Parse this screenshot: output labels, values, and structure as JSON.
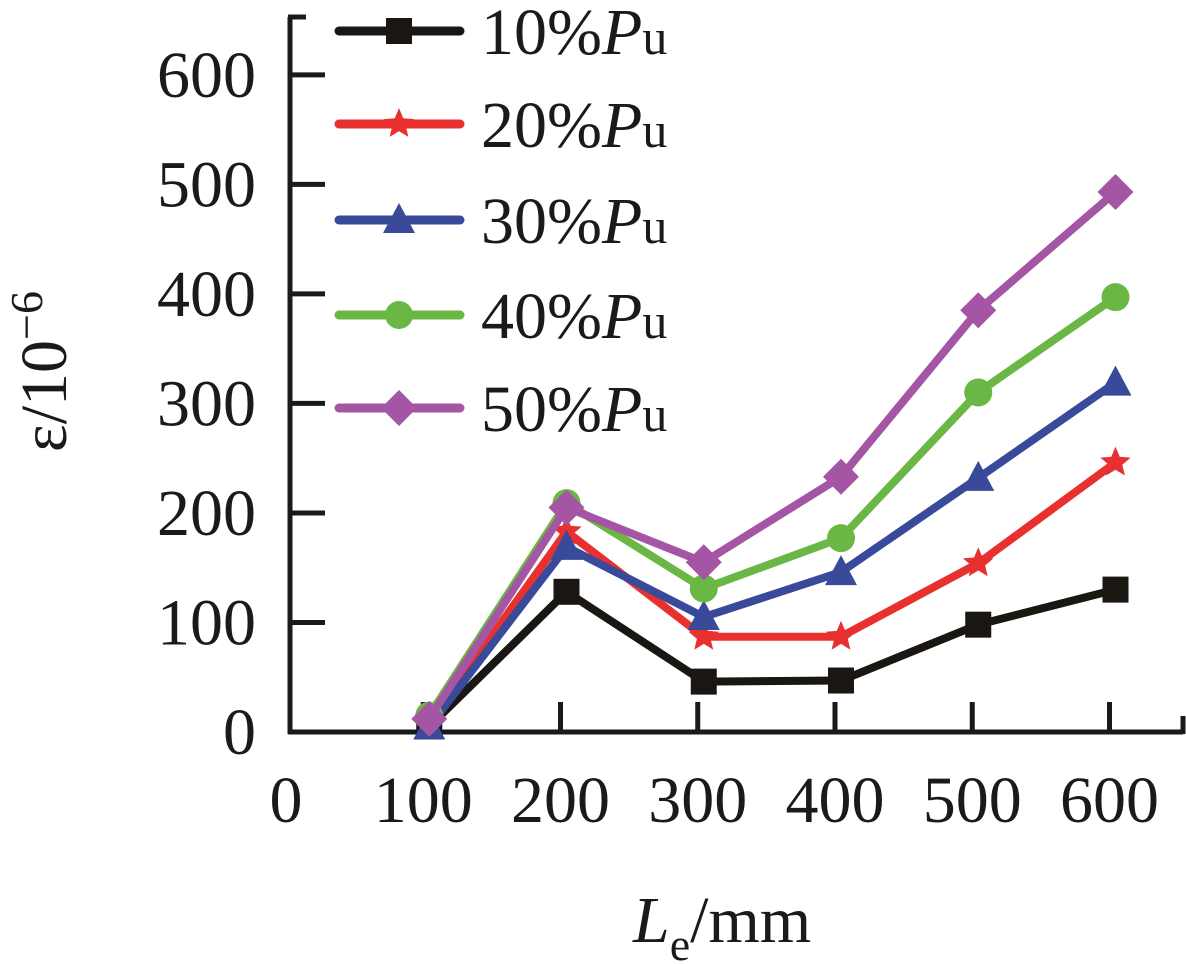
{
  "chart_data": {
    "type": "line",
    "title": "",
    "xlabel": {
      "main": "L",
      "sub": "e",
      "unit": "/mm"
    },
    "ylabel": {
      "main": "ε/10",
      "sup": "−6"
    },
    "x": [
      100,
      200,
      300,
      400,
      500,
      600
    ],
    "xlim": [
      0,
      650
    ],
    "ylim": [
      0,
      650
    ],
    "xticks": [
      0,
      100,
      200,
      300,
      400,
      500,
      600
    ],
    "yticks": [
      0,
      100,
      200,
      300,
      400,
      500,
      600
    ],
    "xtick_labels": [
      "0",
      "100",
      "200",
      "300",
      "400",
      "500",
      "600"
    ],
    "ytick_labels": [
      "0",
      "100",
      "200",
      "300",
      "400",
      "500",
      "600"
    ],
    "grid": false,
    "legend_position": "top-left",
    "series": [
      {
        "name": "10%Pu",
        "label_num": "10%",
        "label_var": "P",
        "label_sub": "u",
        "color": "#1a1612",
        "marker": "square",
        "values": [
          5,
          128,
          46,
          47,
          98,
          130
        ]
      },
      {
        "name": "20%Pu",
        "label_num": "20%",
        "label_var": "P",
        "label_sub": "u",
        "color": "#e8312f",
        "marker": "star",
        "values": [
          8,
          183,
          87,
          87,
          154,
          246
        ]
      },
      {
        "name": "30%Pu",
        "label_num": "30%",
        "label_var": "P",
        "label_sub": "u",
        "color": "#3a4a9a",
        "marker": "triangle",
        "values": [
          5,
          169,
          105,
          146,
          232,
          319
        ]
      },
      {
        "name": "40%Pu",
        "label_num": "40%",
        "label_var": "P",
        "label_sub": "u",
        "color": "#6ab745",
        "marker": "circle",
        "values": [
          15,
          209,
          131,
          177,
          310,
          397
        ]
      },
      {
        "name": "50%Pu",
        "label_num": "50%",
        "label_var": "P",
        "label_sub": "u",
        "color": "#a455a3",
        "marker": "diamond",
        "values": [
          12,
          205,
          155,
          233,
          385,
          493
        ]
      }
    ]
  }
}
